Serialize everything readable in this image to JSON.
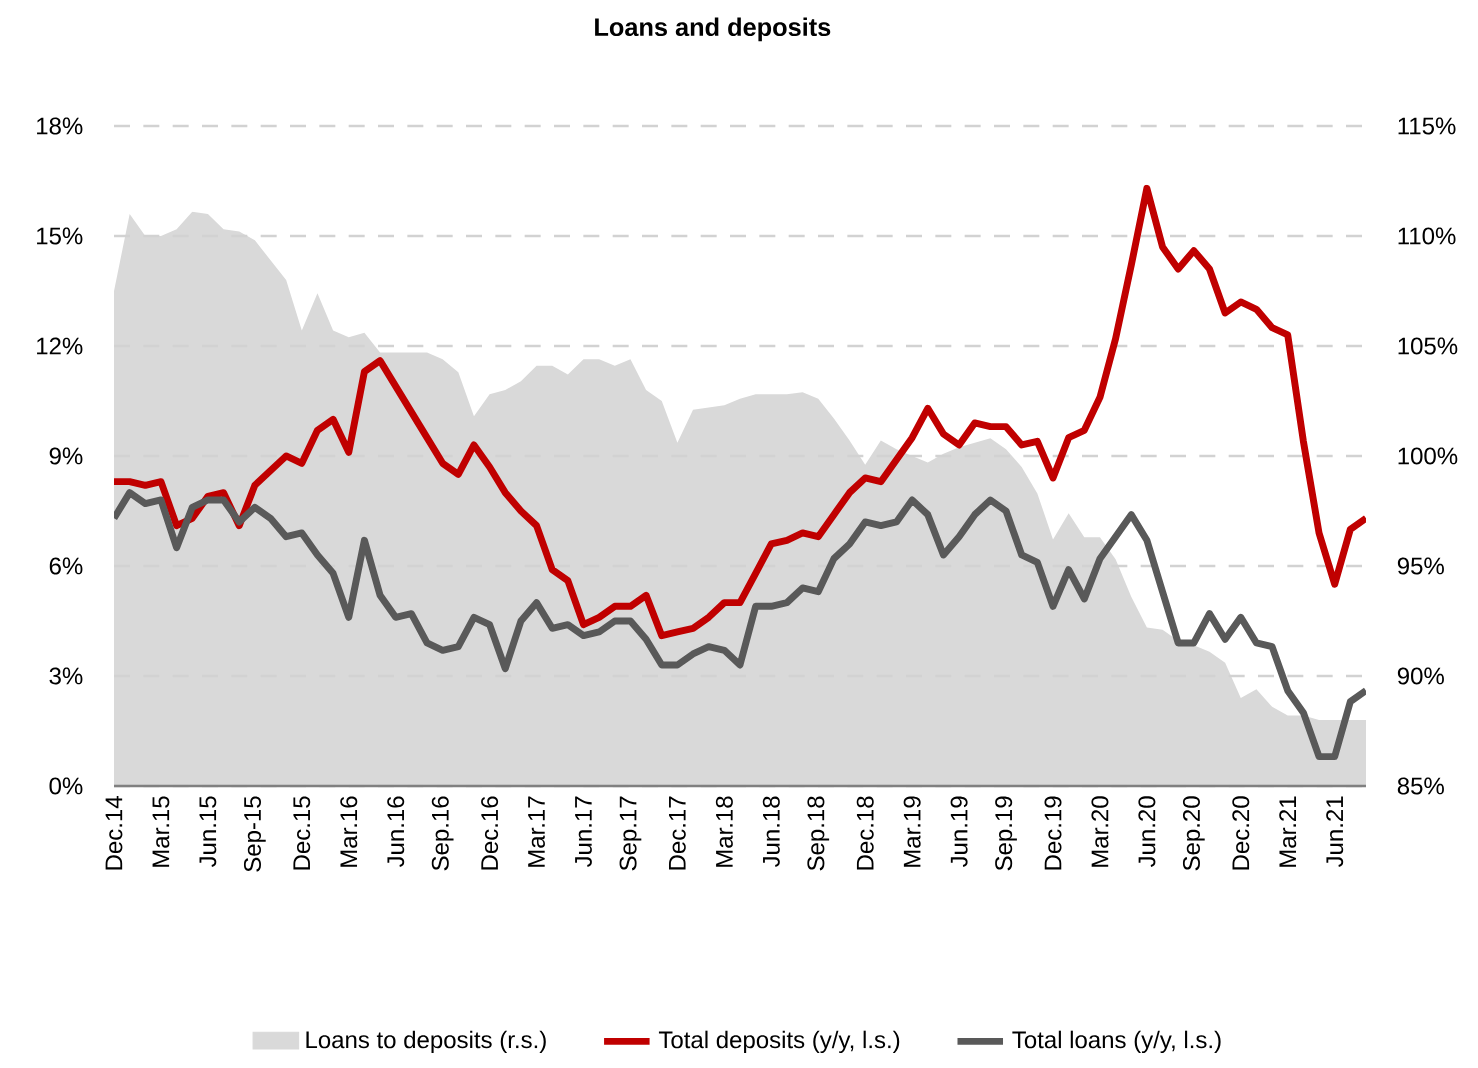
{
  "chart_data": {
    "type": "line",
    "title": "Loans and deposits",
    "categories": [
      "Dec.14",
      null,
      null,
      "Mar.15",
      null,
      null,
      "Jun.15",
      null,
      null,
      "Sep-15",
      null,
      null,
      "Dec.15",
      null,
      null,
      "Mar.16",
      null,
      null,
      "Jun.16",
      null,
      null,
      "Sep.16",
      null,
      null,
      "Dec.16",
      null,
      null,
      "Mar.17",
      null,
      null,
      "Jun.17",
      null,
      null,
      "Sep.17",
      null,
      null,
      "Dec.17",
      null,
      null,
      "Mar.18",
      null,
      null,
      "Jun.18",
      null,
      null,
      "Sep.18",
      null,
      null,
      "Dec.18",
      null,
      null,
      "Mar.19",
      null,
      null,
      "Jun.19",
      null,
      null,
      "Sep.19",
      null,
      null,
      "Dec.19",
      null,
      null,
      "Mar.20",
      null,
      null,
      "Jun.20",
      null,
      null,
      "Sep.20",
      null,
      null,
      "Dec.20",
      null,
      null,
      "Mar.21",
      null,
      null,
      "Jun.21",
      null,
      null
    ],
    "series": [
      {
        "name": "Loans to deposits (r.s.)",
        "type": "area",
        "axis": "y2",
        "color": "#d9d9d9",
        "values": [
          107.5,
          111.0,
          110.0,
          110.0,
          110.3,
          111.1,
          111.0,
          110.3,
          110.2,
          109.8,
          108.9,
          108.0,
          105.7,
          107.4,
          105.7,
          105.4,
          105.6,
          104.7,
          104.7,
          104.7,
          104.7,
          104.4,
          103.8,
          101.8,
          102.8,
          103.0,
          103.4,
          104.1,
          104.1,
          103.7,
          104.4,
          104.4,
          104.1,
          104.4,
          103.0,
          102.5,
          100.6,
          102.1,
          102.2,
          102.3,
          102.6,
          102.8,
          102.8,
          102.8,
          102.9,
          102.6,
          101.7,
          100.7,
          99.6,
          100.7,
          100.3,
          100.0,
          99.7,
          100.1,
          100.4,
          100.6,
          100.8,
          100.3,
          99.5,
          98.3,
          96.2,
          97.4,
          96.3,
          96.3,
          95.3,
          93.6,
          92.2,
          92.1,
          91.6,
          91.4,
          91.1,
          90.6,
          89.0,
          89.4,
          88.6,
          88.2,
          88.2,
          88.0,
          88.0,
          88.0,
          88.0
        ]
      },
      {
        "name": "Total deposits (y/y, l.s.)",
        "color": "#c00000",
        "values": [
          8.3,
          8.3,
          8.2,
          8.3,
          7.1,
          7.3,
          7.9,
          8.0,
          7.1,
          8.2,
          8.6,
          9.0,
          8.8,
          9.7,
          10.0,
          9.1,
          11.3,
          11.6,
          10.9,
          10.2,
          9.5,
          8.8,
          8.5,
          9.3,
          8.7,
          8.0,
          7.5,
          7.1,
          5.9,
          5.6,
          4.4,
          4.6,
          4.9,
          4.9,
          5.2,
          4.1,
          4.2,
          4.3,
          4.6,
          5.0,
          5.0,
          5.8,
          6.6,
          6.7,
          6.9,
          6.8,
          7.4,
          8.0,
          8.4,
          8.3,
          8.9,
          9.5,
          10.3,
          9.6,
          9.3,
          9.9,
          9.8,
          9.8,
          9.3,
          9.4,
          8.4,
          9.5,
          9.7,
          10.6,
          12.2,
          14.2,
          16.3,
          14.7,
          14.1,
          14.6,
          14.1,
          12.9,
          13.2,
          13.0,
          12.5,
          12.3,
          9.4,
          6.9,
          5.5,
          7.0,
          7.3
        ]
      },
      {
        "name": "Total loans (y/y, l.s.)",
        "color": "#595959",
        "values": [
          7.3,
          8.0,
          7.7,
          7.8,
          6.5,
          7.6,
          7.8,
          7.8,
          7.2,
          7.6,
          7.3,
          6.8,
          6.9,
          6.3,
          5.8,
          4.6,
          6.7,
          5.2,
          4.6,
          4.7,
          3.9,
          3.7,
          3.8,
          4.6,
          4.4,
          3.2,
          4.5,
          5.0,
          4.3,
          4.4,
          4.1,
          4.2,
          4.5,
          4.5,
          4.0,
          3.3,
          3.3,
          3.6,
          3.8,
          3.7,
          3.3,
          4.9,
          4.9,
          5.0,
          5.4,
          5.3,
          6.2,
          6.6,
          7.2,
          7.1,
          7.2,
          7.8,
          7.4,
          6.3,
          6.8,
          7.4,
          7.8,
          7.5,
          6.3,
          6.1,
          4.9,
          5.9,
          5.1,
          6.2,
          6.8,
          7.4,
          6.7,
          5.3,
          3.9,
          3.9,
          4.7,
          4.0,
          4.6,
          3.9,
          3.8,
          2.6,
          2.0,
          0.8,
          0.8,
          2.3,
          2.6
        ]
      }
    ],
    "ylim": [
      0,
      18
    ],
    "yticks": [
      {
        "value": 0,
        "label": "0%"
      },
      {
        "value": 3,
        "label": "3%"
      },
      {
        "value": 6,
        "label": "6%"
      },
      {
        "value": 9,
        "label": "9%"
      },
      {
        "value": 12,
        "label": "12%"
      },
      {
        "value": 15,
        "label": "15%"
      },
      {
        "value": 18,
        "label": "18%"
      }
    ],
    "y2lim": [
      85,
      115
    ],
    "y2ticks": [
      {
        "value": 85,
        "label": "85%"
      },
      {
        "value": 90,
        "label": "90%"
      },
      {
        "value": 95,
        "label": "95%"
      },
      {
        "value": 100,
        "label": "100%"
      },
      {
        "value": 105,
        "label": "105%"
      },
      {
        "value": 110,
        "label": "110%"
      },
      {
        "value": 115,
        "label": "115%"
      }
    ],
    "grid": "y",
    "legend": "bottom"
  }
}
